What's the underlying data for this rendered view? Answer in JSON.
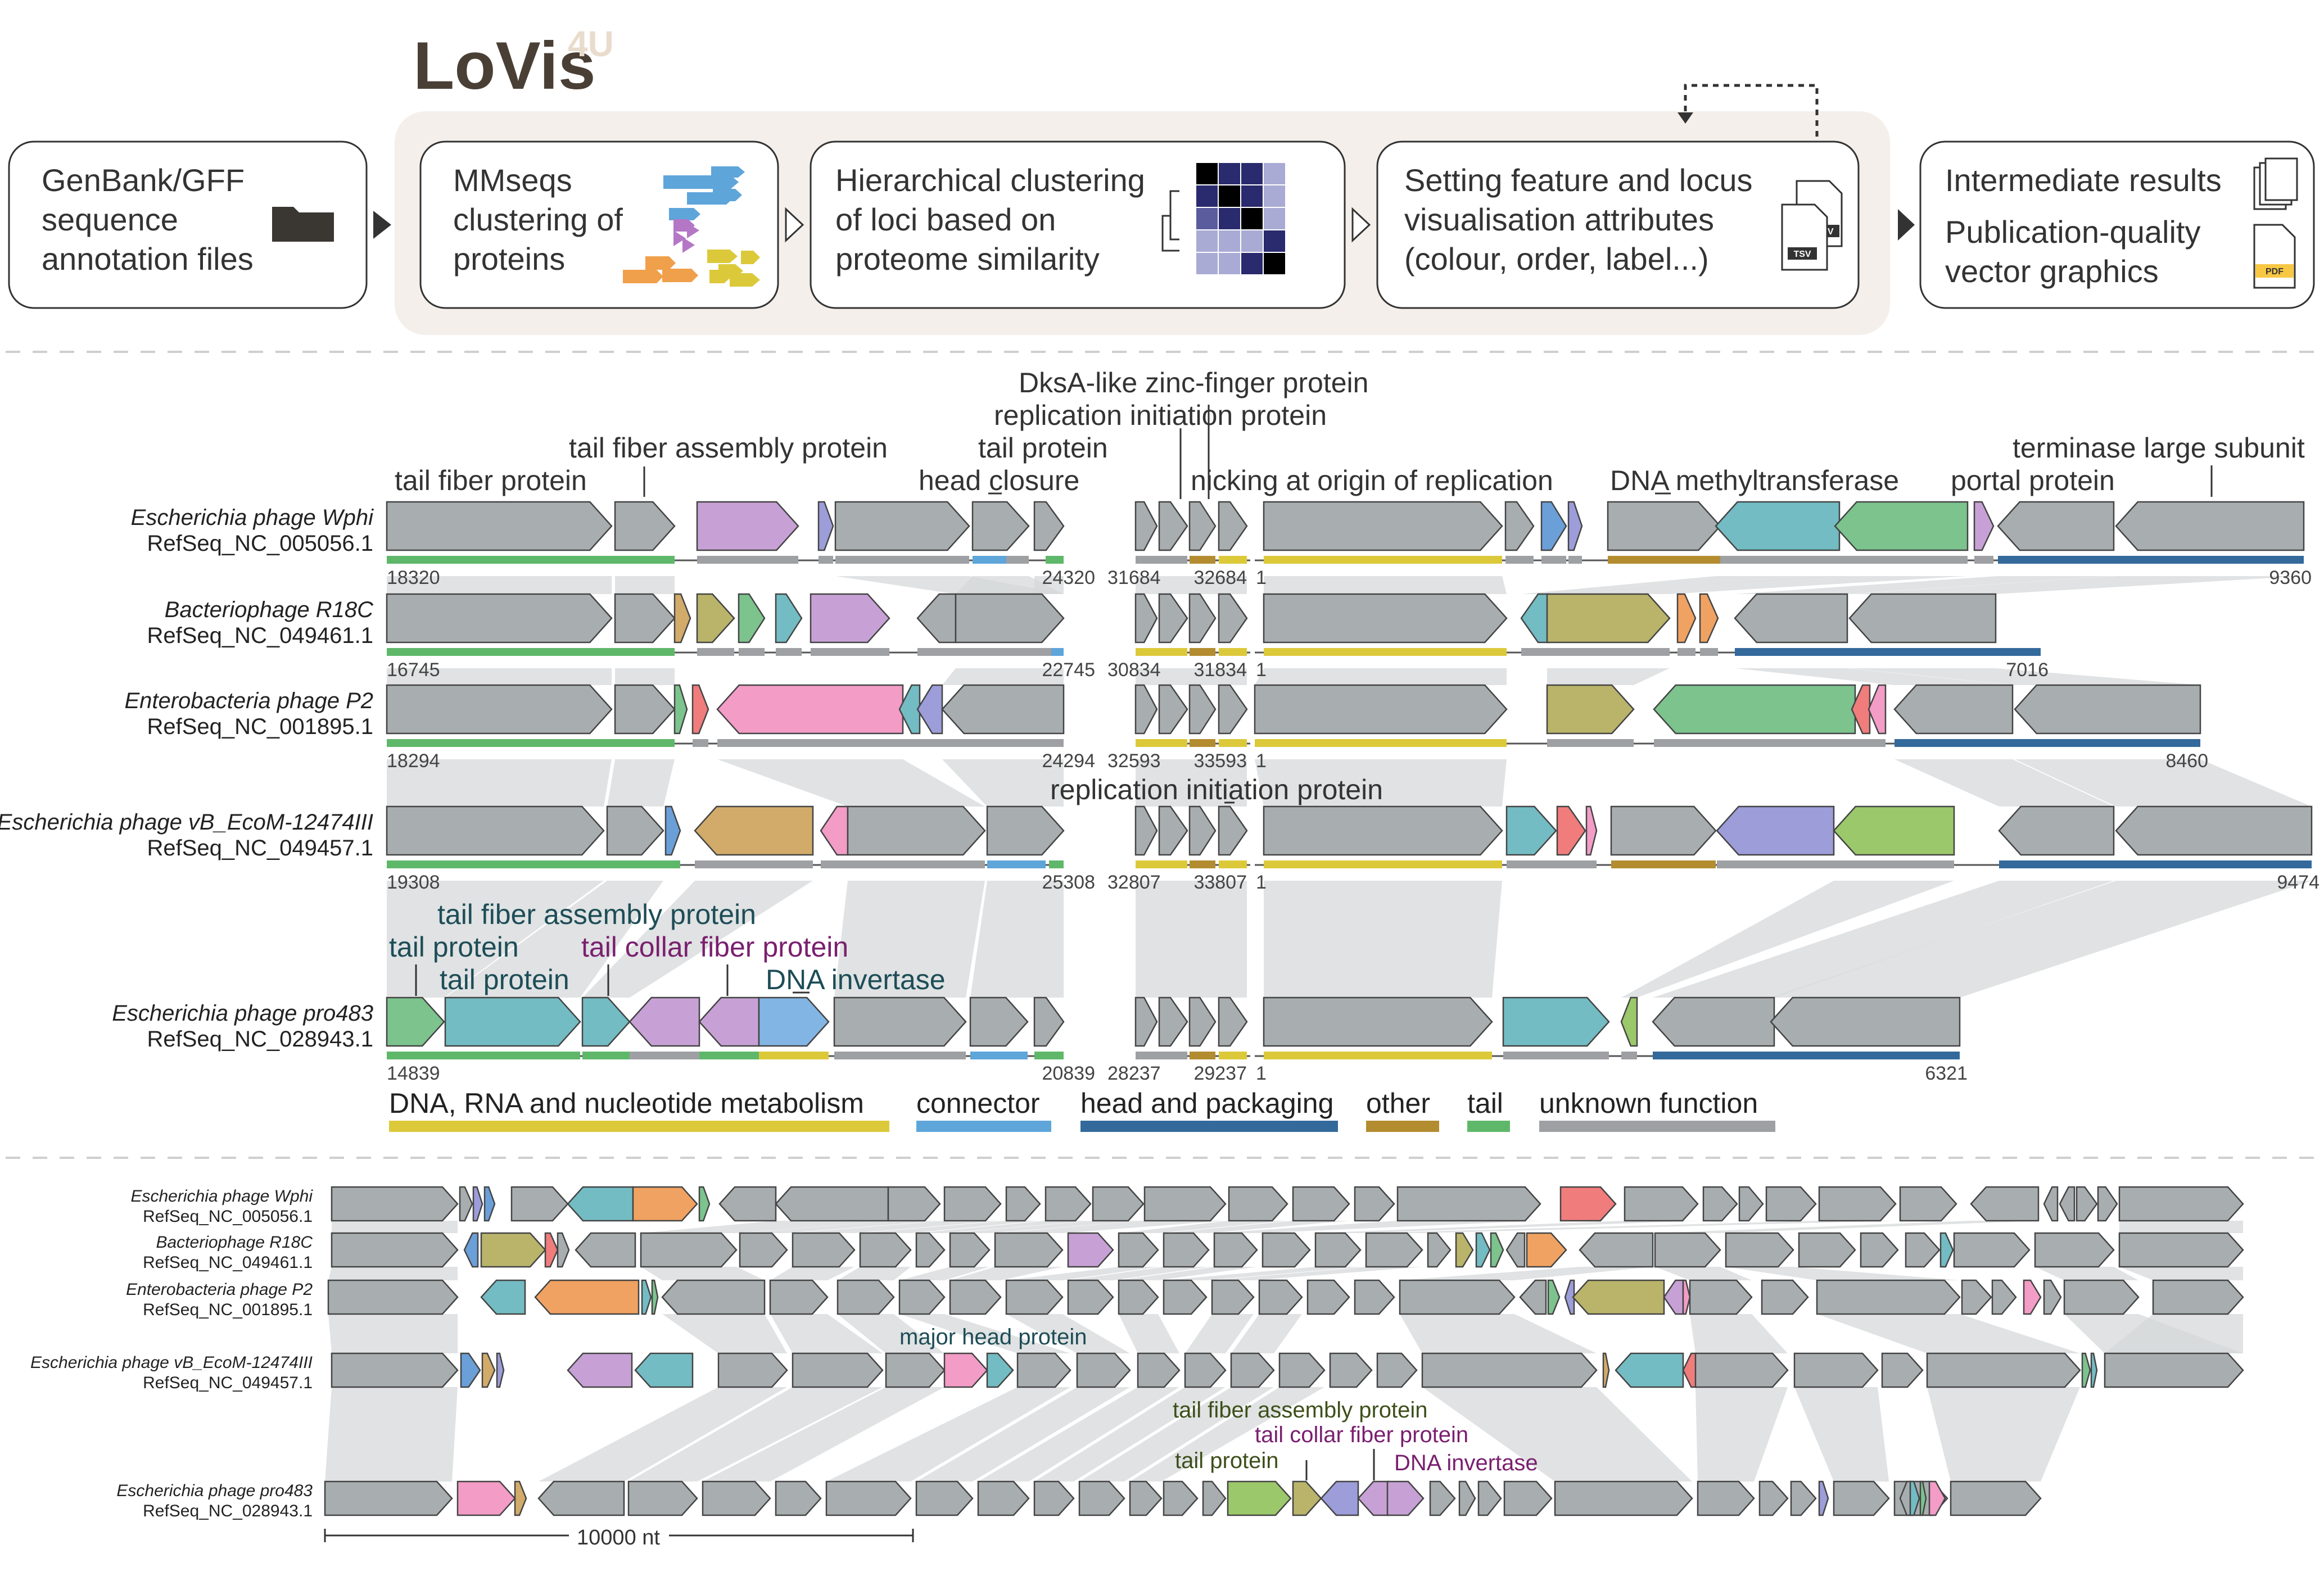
{
  "pipeline": {
    "logo": "LoVis4U",
    "step1": [
      "GenBank/GFF",
      "sequence",
      "annotation files"
    ],
    "step2": [
      "MMseqs",
      "clustering of",
      "proteins"
    ],
    "step3": [
      "Hierarchical clustering",
      "of loci based on",
      "proteome similarity"
    ],
    "step4": [
      "Setting feature and locus",
      "visualisation attributes",
      "(colour, order, label...)"
    ],
    "step5": [
      "Intermediate results",
      "Publication-quality",
      "vector graphics"
    ],
    "tsv": "TSV",
    "pdf": "PDF",
    "icons": [
      "folder-icon",
      "protein-cluster-icon",
      "heatmap-icon",
      "tsv-file-icon",
      "pdf-file-icon"
    ]
  },
  "colors": {
    "gray": "#A8AEB0",
    "purple": "#C7A1D5",
    "pink": "#F29CC6",
    "teal": "#73BCC3",
    "green": "#7CC38E",
    "olive": "#B9B46A",
    "lightblue": "#83B5E4",
    "blue": "#6B9FD8",
    "violet": "#9C9DD9",
    "orange": "#F0A262",
    "red": "#F07C7C",
    "tan": "#D2AB6A",
    "lime": "#9BC86A",
    "cat_dna": "#DCC93A",
    "cat_connector": "#5EA5DA",
    "cat_head": "#34699B",
    "cat_other": "#B38C30",
    "cat_tail": "#5FB86A",
    "cat_unknown": "#9EA0A3"
  },
  "panelA": {
    "loci": [
      {
        "name": "Escherichia phage Wphi",
        "id": "RefSeq_NC_005056.1",
        "left_start": "18320",
        "left_end": "24320",
        "mid_start": "31684",
        "mid_end": "32684",
        "right_start": "1",
        "right_end": "9360"
      },
      {
        "name": "Bacteriophage R18C",
        "id": "RefSeq_NC_049461.1",
        "left_start": "16745",
        "left_end": "22745",
        "mid_start": "30834",
        "mid_end": "31834",
        "right_start": "1",
        "right_end": "7016"
      },
      {
        "name": "Enterobacteria phage P2",
        "id": "RefSeq_NC_001895.1",
        "left_start": "18294",
        "left_end": "24294",
        "mid_start": "32593",
        "mid_end": "33593",
        "right_start": "1",
        "right_end": "8460"
      },
      {
        "name": "Escherichia phage vB_EcoM-12474III",
        "id": "RefSeq_NC_049457.1",
        "left_start": "19308",
        "left_end": "25308",
        "mid_start": "32807",
        "mid_end": "33807",
        "right_start": "1",
        "right_end": "9474"
      },
      {
        "name": "Escherichia phage pro483",
        "id": "RefSeq_NC_028943.1",
        "left_start": "14839",
        "left_end": "20839",
        "mid_start": "28237",
        "mid_end": "29237",
        "right_start": "1",
        "right_end": "6321"
      }
    ],
    "labels_top": {
      "tail_fiber_protein": "tail fiber protein",
      "tail_fiber_assembly": "tail fiber assembly protein",
      "tail_protein": "tail protein",
      "head_closure": "head closure",
      "dksa": "DksA-like zinc-finger protein",
      "replication_initiation": "replication initiation protein",
      "nicking": "nicking at origin of replication",
      "dna_methyltransferase": "DNA methyltransferase",
      "portal": "portal protein",
      "terminase": "terminase large subunit"
    },
    "label_mid_replication": "replication initiation protein",
    "labels_pro483": {
      "tail_fiber_assembly": "tail fiber assembly protein",
      "tail_protein_1": "tail protein",
      "tail_protein_2": "tail protein",
      "tail_collar": "tail collar fiber protein",
      "dna_invertase": "DNA invertase"
    },
    "legend": [
      {
        "label": "DNA, RNA and nucleotide metabolism",
        "color": "#DCC93A"
      },
      {
        "label": "connector",
        "color": "#5EA5DA"
      },
      {
        "label": "head and packaging",
        "color": "#34699B"
      },
      {
        "label": "other",
        "color": "#B38C30"
      },
      {
        "label": "tail",
        "color": "#5FB86A"
      },
      {
        "label": "unknown function",
        "color": "#9EA0A3"
      }
    ]
  },
  "panelB": {
    "loci": [
      {
        "name": "Escherichia phage Wphi",
        "id": "RefSeq_NC_005056.1"
      },
      {
        "name": "Bacteriophage R18C",
        "id": "RefSeq_NC_049461.1"
      },
      {
        "name": "Enterobacteria phage P2",
        "id": "RefSeq_NC_001895.1"
      },
      {
        "name": "Escherichia phage vB_EcoM-12474III",
        "id": "RefSeq_NC_049457.1"
      },
      {
        "name": "Escherichia phage pro483",
        "id": "RefSeq_NC_028943.1"
      }
    ],
    "label_major_head": "major head protein",
    "label_tail_fiber_assembly": "tail fiber assembly protein",
    "label_tail_collar": "tail collar fiber protein",
    "label_tail_protein": "tail protein",
    "label_dna_invertase": "DNA invertase",
    "scale": "10000 nt"
  }
}
